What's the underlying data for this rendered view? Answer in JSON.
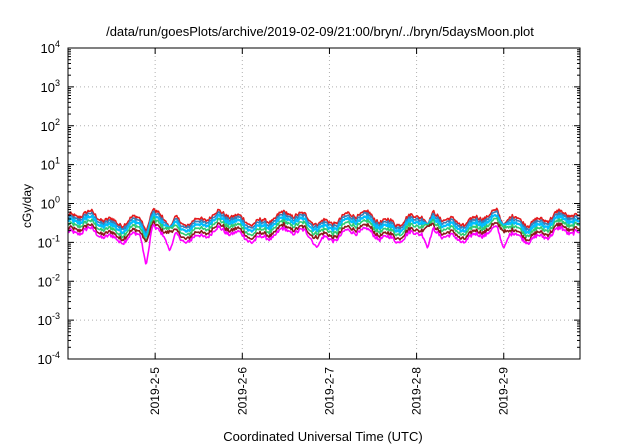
{
  "chart_data": {
    "type": "line",
    "title": "/data/run/goesPlots/archive/2019-02-09/21:00/bryn/../bryn/5daysMoon.plot",
    "xlabel": "Coordinated Universal Time (UTC)",
    "ylabel": "cGy/day",
    "y_scale": "log",
    "ylim": [
      0.0001,
      10000
    ],
    "y_ticks": [
      {
        "base": "10",
        "exp": "-4",
        "value": 0.0001
      },
      {
        "base": "10",
        "exp": "-3",
        "value": 0.001
      },
      {
        "base": "10",
        "exp": "-2",
        "value": 0.01
      },
      {
        "base": "10",
        "exp": "-1",
        "value": 0.1
      },
      {
        "base": "10",
        "exp": "0",
        "value": 1
      },
      {
        "base": "10",
        "exp": "1",
        "value": 10
      },
      {
        "base": "10",
        "exp": "2",
        "value": 100
      },
      {
        "base": "10",
        "exp": "3",
        "value": 1000
      },
      {
        "base": "10",
        "exp": "4",
        "value": 10000
      }
    ],
    "xlim": [
      "2019-02-04T00:00",
      "2019-02-09T21:00"
    ],
    "x_ticks": [
      {
        "label": "2019-2-5",
        "value": "2019-02-05"
      },
      {
        "label": "2019-2-6",
        "value": "2019-02-06"
      },
      {
        "label": "2019-2-7",
        "value": "2019-02-07"
      },
      {
        "label": "2019-2-8",
        "value": "2019-02-08"
      },
      {
        "label": "2019-2-9",
        "value": "2019-02-09"
      }
    ],
    "grid": true,
    "legend": "none",
    "series": [
      {
        "color": "#e41a1c",
        "typical_value": 0.42
      },
      {
        "color": "#377eb8",
        "typical_value": 0.36
      },
      {
        "color": "#00bfff",
        "typical_value": 0.3
      },
      {
        "color": "#2ecc71",
        "typical_value": 0.24
      },
      {
        "color": "#8b1a1a",
        "typical_value": 0.19
      },
      {
        "color": "#ff00ff",
        "typical_value": 0.155
      }
    ],
    "dips": [
      {
        "time": "2019-02-04T21:30",
        "min_value": 0.025
      },
      {
        "time": "2019-02-05T04:00",
        "min_value": 0.06
      },
      {
        "time": "2019-02-06T20:30",
        "min_value": 0.075
      },
      {
        "time": "2019-02-08T03:00",
        "min_value": 0.07
      },
      {
        "time": "2019-02-09T00:00",
        "min_value": 0.07
      }
    ]
  }
}
